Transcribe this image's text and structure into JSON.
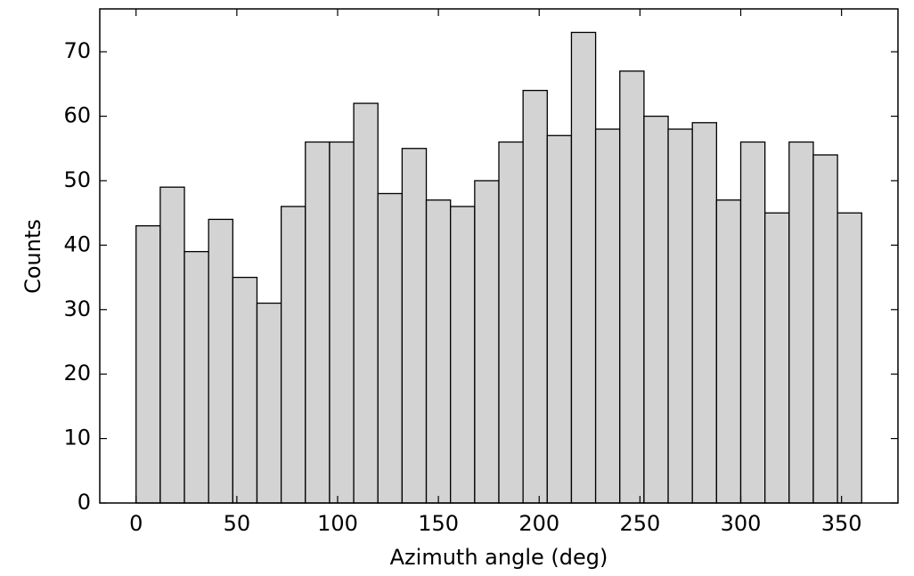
{
  "chart_data": {
    "type": "histogram",
    "xlabel": "Azimuth angle (deg)",
    "ylabel": "Counts",
    "bins": [
      0,
      12,
      24,
      36,
      48,
      60,
      72,
      84,
      96,
      108,
      120,
      132,
      144,
      156,
      168,
      180,
      192,
      204,
      216,
      228,
      240,
      252,
      264,
      276,
      288,
      300,
      312,
      324,
      336,
      348,
      360
    ],
    "values": [
      43,
      49,
      39,
      44,
      35,
      31,
      46,
      56,
      56,
      62,
      48,
      55,
      47,
      46,
      50,
      56,
      64,
      57,
      73,
      58,
      67,
      60,
      58,
      59,
      47,
      56,
      45,
      56,
      54,
      45
    ],
    "color": "#d3d3d3",
    "edgecolor": "#000000",
    "xlim": [
      -18,
      378
    ],
    "ylim": [
      0,
      76.65
    ],
    "xticks": [
      0,
      50,
      100,
      150,
      200,
      250,
      300,
      350
    ],
    "yticks": [
      0,
      10,
      20,
      30,
      40,
      50,
      60,
      70
    ]
  }
}
